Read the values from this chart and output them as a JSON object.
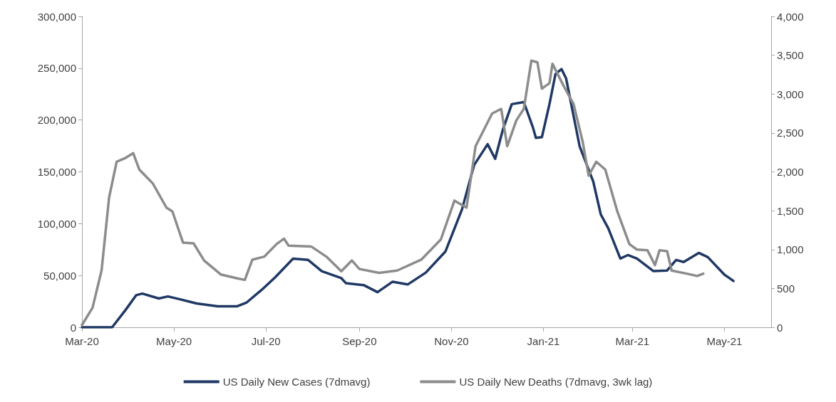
{
  "chart_data": {
    "type": "line",
    "xlim": [
      "2020-03-01",
      "2021-06-01"
    ],
    "xticks": [
      {
        "value": "2020-03-01",
        "label": "Mar-20"
      },
      {
        "value": "2020-05-01",
        "label": "May-20"
      },
      {
        "value": "2020-07-01",
        "label": "Jul-20"
      },
      {
        "value": "2020-09-01",
        "label": "Sep-20"
      },
      {
        "value": "2020-11-01",
        "label": "Nov-20"
      },
      {
        "value": "2021-01-01",
        "label": "Jan-21"
      },
      {
        "value": "2021-03-01",
        "label": "Mar-21"
      },
      {
        "value": "2021-05-01",
        "label": "May-21"
      }
    ],
    "ylim": [
      0,
      300000
    ],
    "yticks": [
      0,
      {
        "value": 50000,
        "label": "50,000"
      },
      {
        "value": 100000,
        "label": "100,000"
      },
      {
        "value": 150000,
        "label": "150,000"
      },
      {
        "value": 200000,
        "label": "200,000"
      },
      {
        "value": 250000,
        "label": "250,000"
      },
      {
        "value": 300000,
        "label": "300,000"
      }
    ],
    "y2lim": [
      0,
      4000
    ],
    "y2ticks": [
      0,
      500,
      {
        "value": 1000,
        "label": "1,000"
      },
      {
        "value": 1500,
        "label": "1,500"
      },
      {
        "value": 2000,
        "label": "2,000"
      },
      {
        "value": 2500,
        "label": "2,500"
      },
      {
        "value": 3000,
        "label": "3,000"
      },
      {
        "value": 3500,
        "label": "3,500"
      },
      {
        "value": 4000,
        "label": "4,000"
      }
    ],
    "grid": false,
    "legend": "bottom",
    "marker": "none",
    "line_style": "solid",
    "series": [
      {
        "name": "US Daily New Cases (7dmavg)",
        "color": "#1f3864",
        "x": [
          "2020-03-01",
          "2020-03-21",
          "2020-03-30",
          "2020-04-06",
          "2020-04-10",
          "2020-04-21",
          "2020-04-27",
          "2020-05-05",
          "2020-05-16",
          "2020-05-30",
          "2020-06-12",
          "2020-06-18",
          "2020-06-28",
          "2020-07-07",
          "2020-07-19",
          "2020-07-29",
          "2020-08-07",
          "2020-08-20",
          "2020-08-23",
          "2020-09-04",
          "2020-09-13",
          "2020-09-23",
          "2020-10-03",
          "2020-10-15",
          "2020-10-28",
          "2020-11-08",
          "2020-11-16",
          "2020-11-25",
          "2020-11-30",
          "2020-12-05",
          "2020-12-11",
          "2020-12-19",
          "2020-12-25",
          "2020-12-27",
          "2020-12-31",
          "2021-01-05",
          "2021-01-09",
          "2021-01-13",
          "2021-01-16",
          "2021-01-25",
          "2021-02-03",
          "2021-02-08",
          "2021-02-13",
          "2021-02-21",
          "2021-02-26",
          "2021-03-04",
          "2021-03-15",
          "2021-03-24",
          "2021-03-30",
          "2021-04-04",
          "2021-04-14",
          "2021-04-20",
          "2021-05-01",
          "2021-05-07"
        ],
        "values": [
          0,
          0,
          16900,
          31000,
          32500,
          27800,
          29800,
          27000,
          23000,
          20300,
          20300,
          23700,
          35900,
          48100,
          66300,
          65000,
          54200,
          47400,
          42600,
          40600,
          33900,
          44000,
          41300,
          52800,
          73100,
          113700,
          156400,
          176700,
          162500,
          190200,
          215300,
          217300,
          193000,
          182800,
          183500,
          215300,
          244400,
          249100,
          240300,
          174700,
          140800,
          109000,
          95500,
          66300,
          69700,
          66300,
          54200,
          54800,
          65000,
          63000,
          71800,
          67700,
          50800,
          44700
        ]
      },
      {
        "name": "US Daily New Deaths (7dmavg, 3wk lag)",
        "color": "#8c8c8c",
        "axis": "y2",
        "x": [
          "2020-03-01",
          "2020-03-08",
          "2020-03-14",
          "2020-03-19",
          "2020-03-24",
          "2020-03-30",
          "2020-04-04",
          "2020-04-08",
          "2020-04-17",
          "2020-04-26",
          "2020-04-30",
          "2020-05-07",
          "2020-05-14",
          "2020-05-21",
          "2020-06-01",
          "2020-06-12",
          "2020-06-17",
          "2020-06-22",
          "2020-06-30",
          "2020-07-08",
          "2020-07-13",
          "2020-07-16",
          "2020-07-31",
          "2020-08-10",
          "2020-08-20",
          "2020-08-27",
          "2020-09-01",
          "2020-09-14",
          "2020-09-26",
          "2020-10-12",
          "2020-10-25",
          "2020-11-03",
          "2020-11-11",
          "2020-11-17",
          "2020-11-28",
          "2020-12-04",
          "2020-12-08",
          "2020-12-14",
          "2020-12-19",
          "2020-12-24",
          "2020-12-28",
          "2020-12-31",
          "2021-01-05",
          "2021-01-07",
          "2021-01-14",
          "2021-01-21",
          "2021-01-27",
          "2021-01-31",
          "2021-02-05",
          "2021-02-11",
          "2021-02-19",
          "2021-02-27",
          "2021-03-04",
          "2021-03-11",
          "2021-03-16",
          "2021-03-19",
          "2021-03-24",
          "2021-03-27",
          "2021-04-06",
          "2021-04-13",
          "2021-04-17"
        ],
        "values": [
          30,
          250,
          730,
          1670,
          2130,
          2180,
          2240,
          2030,
          1850,
          1540,
          1490,
          1090,
          1080,
          860,
          680,
          630,
          610,
          870,
          910,
          1070,
          1140,
          1050,
          1040,
          910,
          720,
          860,
          750,
          700,
          730,
          870,
          1130,
          1630,
          1540,
          2330,
          2750,
          2810,
          2330,
          2660,
          2810,
          3430,
          3410,
          3070,
          3140,
          3390,
          3120,
          2870,
          2390,
          1950,
          2130,
          2030,
          1490,
          1070,
          1000,
          990,
          800,
          990,
          980,
          730,
          690,
          660,
          690
        ]
      }
    ]
  }
}
